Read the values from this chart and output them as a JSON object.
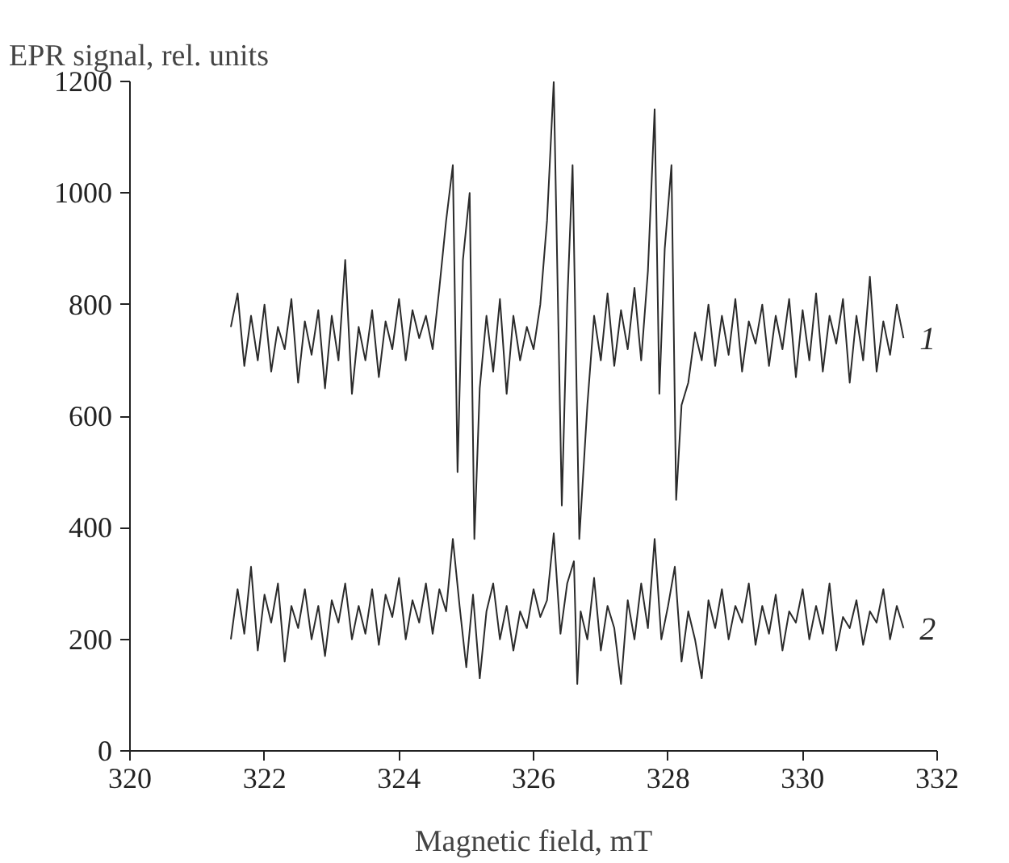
{
  "chart_data": {
    "type": "line",
    "xlabel": "Magnetic field, mT",
    "ylabel": "EPR signal, rel. units",
    "xlim": [
      320,
      332
    ],
    "xticks": [
      320,
      322,
      324,
      326,
      328,
      330,
      332
    ],
    "ylim": [
      0,
      1200
    ],
    "yticks": [
      0,
      200,
      400,
      600,
      800,
      1000,
      1200
    ],
    "grid": false,
    "line_style": "solid",
    "series": [
      {
        "name": "1",
        "color": "#2b2b2b",
        "x": [
          321.5,
          321.6,
          321.7,
          321.8,
          321.9,
          322.0,
          322.1,
          322.2,
          322.3,
          322.4,
          322.5,
          322.6,
          322.7,
          322.8,
          322.9,
          323.0,
          323.1,
          323.2,
          323.3,
          323.4,
          323.5,
          323.6,
          323.7,
          323.8,
          323.9,
          324.0,
          324.1,
          324.2,
          324.3,
          324.4,
          324.5,
          324.6,
          324.7,
          324.8,
          324.87,
          324.95,
          325.05,
          325.12,
          325.2,
          325.3,
          325.4,
          325.5,
          325.6,
          325.7,
          325.8,
          325.9,
          326.0,
          326.1,
          326.2,
          326.3,
          326.42,
          326.5,
          326.58,
          326.68,
          326.8,
          326.9,
          327.0,
          327.1,
          327.2,
          327.3,
          327.4,
          327.5,
          327.6,
          327.7,
          327.8,
          327.87,
          327.95,
          328.05,
          328.12,
          328.2,
          328.3,
          328.4,
          328.5,
          328.6,
          328.7,
          328.8,
          328.9,
          329.0,
          329.1,
          329.2,
          329.3,
          329.4,
          329.5,
          329.6,
          329.7,
          329.8,
          329.9,
          330.0,
          330.1,
          330.2,
          330.3,
          330.4,
          330.5,
          330.6,
          330.7,
          330.8,
          330.9,
          331.0,
          331.1,
          331.2,
          331.3,
          331.4,
          331.5
        ],
        "values": [
          760,
          820,
          690,
          780,
          700,
          800,
          680,
          760,
          720,
          810,
          660,
          770,
          710,
          790,
          650,
          780,
          700,
          880,
          640,
          760,
          700,
          790,
          670,
          770,
          720,
          810,
          700,
          790,
          740,
          780,
          720,
          830,
          950,
          1050,
          500,
          880,
          1000,
          380,
          650,
          780,
          680,
          810,
          640,
          780,
          700,
          760,
          720,
          800,
          950,
          1200,
          440,
          800,
          1050,
          380,
          620,
          780,
          700,
          820,
          690,
          790,
          720,
          830,
          700,
          860,
          1150,
          640,
          900,
          1050,
          450,
          620,
          660,
          750,
          700,
          800,
          690,
          780,
          710,
          810,
          680,
          770,
          730,
          800,
          690,
          780,
          720,
          810,
          670,
          790,
          700,
          820,
          680,
          780,
          730,
          810,
          660,
          780,
          700,
          850,
          680,
          770,
          710,
          800,
          740
        ]
      },
      {
        "name": "2",
        "color": "#2b2b2b",
        "x": [
          321.5,
          321.6,
          321.7,
          321.8,
          321.9,
          322.0,
          322.1,
          322.2,
          322.3,
          322.4,
          322.5,
          322.6,
          322.7,
          322.8,
          322.9,
          323.0,
          323.1,
          323.2,
          323.3,
          323.4,
          323.5,
          323.6,
          323.7,
          323.8,
          323.9,
          324.0,
          324.1,
          324.2,
          324.3,
          324.4,
          324.5,
          324.6,
          324.7,
          324.8,
          324.9,
          325.0,
          325.1,
          325.2,
          325.3,
          325.4,
          325.5,
          325.6,
          325.7,
          325.8,
          325.9,
          326.0,
          326.1,
          326.2,
          326.3,
          326.4,
          326.5,
          326.6,
          326.65,
          326.7,
          326.8,
          326.9,
          327.0,
          327.1,
          327.2,
          327.3,
          327.4,
          327.5,
          327.6,
          327.7,
          327.8,
          327.9,
          328.0,
          328.1,
          328.2,
          328.3,
          328.4,
          328.5,
          328.6,
          328.7,
          328.8,
          328.9,
          329.0,
          329.1,
          329.2,
          329.3,
          329.4,
          329.5,
          329.6,
          329.7,
          329.8,
          329.9,
          330.0,
          330.1,
          330.2,
          330.3,
          330.4,
          330.5,
          330.6,
          330.7,
          330.8,
          330.9,
          331.0,
          331.1,
          331.2,
          331.3,
          331.4,
          331.5
        ],
        "values": [
          200,
          290,
          210,
          330,
          180,
          280,
          230,
          300,
          160,
          260,
          220,
          290,
          200,
          260,
          170,
          270,
          230,
          300,
          200,
          260,
          210,
          290,
          190,
          280,
          240,
          310,
          200,
          270,
          230,
          300,
          210,
          290,
          250,
          380,
          260,
          150,
          280,
          130,
          250,
          300,
          200,
          260,
          180,
          250,
          220,
          290,
          240,
          270,
          390,
          210,
          300,
          340,
          120,
          250,
          200,
          310,
          180,
          260,
          220,
          120,
          270,
          200,
          300,
          220,
          380,
          200,
          260,
          330,
          160,
          250,
          200,
          130,
          270,
          220,
          290,
          200,
          260,
          230,
          300,
          190,
          260,
          210,
          280,
          180,
          250,
          230,
          290,
          200,
          260,
          210,
          300,
          180,
          240,
          220,
          270,
          190,
          250,
          230,
          290,
          200,
          260,
          220
        ]
      }
    ]
  }
}
